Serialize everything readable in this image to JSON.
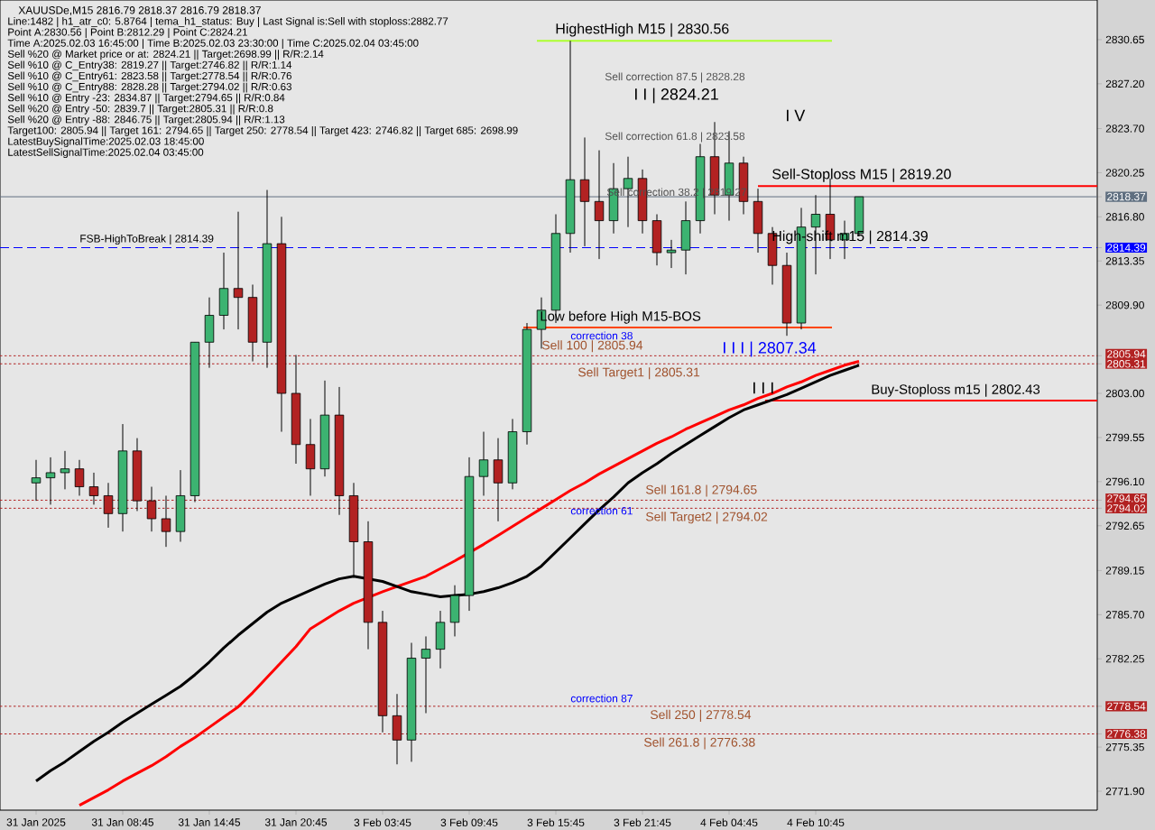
{
  "chart_data": {
    "type": "candlestick",
    "title": "XAUUSDe,M15  2816.79 2818.37 2816.79 2818.37",
    "categories": [
      "31 Jan 2025",
      null,
      null,
      null,
      null,
      null,
      "31 Jan 08:45",
      null,
      null,
      null,
      null,
      null,
      "31 Jan 14:45",
      null,
      null,
      null,
      null,
      null,
      "31 Jan 20:45",
      null,
      null,
      null,
      null,
      null,
      "3 Feb 03:45",
      null,
      null,
      null,
      null,
      null,
      "3 Feb 09:45",
      null,
      null,
      null,
      null,
      null,
      "3 Feb 15:45",
      null,
      null,
      null,
      null,
      null,
      "3 Feb 21:45",
      null,
      null,
      null,
      null,
      null,
      "4 Feb 04:45",
      null,
      null,
      null,
      null,
      null,
      "4 Feb 10:45",
      null,
      null,
      null
    ],
    "ohlc": [
      [
        2796.0,
        2797.8,
        2794.6,
        2796.4
      ],
      [
        2796.4,
        2798.0,
        2794.3,
        2796.8
      ],
      [
        2796.8,
        2798.5,
        2795.5,
        2797.1
      ],
      [
        2797.1,
        2797.8,
        2795.0,
        2795.7
      ],
      [
        2795.7,
        2796.8,
        2794.3,
        2795.0
      ],
      [
        2795.0,
        2796.0,
        2792.5,
        2793.6
      ],
      [
        2793.6,
        2800.6,
        2792.2,
        2798.5
      ],
      [
        2798.5,
        2799.5,
        2793.8,
        2794.6
      ],
      [
        2794.6,
        2795.7,
        2792.2,
        2793.2
      ],
      [
        2793.2,
        2795.0,
        2791.0,
        2792.2
      ],
      [
        2792.2,
        2797.0,
        2791.4,
        2795.0
      ],
      [
        2795.0,
        2807.0,
        2794.5,
        2807.0
      ],
      [
        2807.0,
        2810.5,
        2805.0,
        2809.1
      ],
      [
        2809.1,
        2814.0,
        2808.0,
        2811.2
      ],
      [
        2811.2,
        2817.2,
        2808.0,
        2810.5
      ],
      [
        2810.5,
        2811.5,
        2805.5,
        2807.0
      ],
      [
        2807.0,
        2818.9,
        2805.0,
        2814.7
      ],
      [
        2814.7,
        2816.8,
        2800.0,
        2803.0
      ],
      [
        2803.0,
        2806.0,
        2797.5,
        2799.0
      ],
      [
        2799.0,
        2801.0,
        2795.0,
        2797.1
      ],
      [
        2797.1,
        2804.0,
        2796.5,
        2801.3
      ],
      [
        2801.3,
        2803.5,
        2793.5,
        2795.0
      ],
      [
        2795.0,
        2796.0,
        2788.6,
        2791.4
      ],
      [
        2791.4,
        2793.0,
        2783.0,
        2785.1
      ],
      [
        2785.1,
        2786.0,
        2776.5,
        2777.8
      ],
      [
        2777.8,
        2779.5,
        2774.0,
        2775.9
      ],
      [
        2775.9,
        2783.5,
        2774.2,
        2782.3
      ],
      [
        2782.3,
        2784.0,
        2778.0,
        2783.0
      ],
      [
        2783.0,
        2786.0,
        2781.5,
        2785.1
      ],
      [
        2785.1,
        2788.0,
        2784.0,
        2787.2
      ],
      [
        2787.2,
        2798.0,
        2786.0,
        2796.5
      ],
      [
        2796.5,
        2800.0,
        2795.0,
        2797.8
      ],
      [
        2797.8,
        2799.5,
        2793.0,
        2796.0
      ],
      [
        2796.0,
        2801.0,
        2795.5,
        2800.0
      ],
      [
        2800.0,
        2808.5,
        2799.0,
        2808.0
      ],
      [
        2808.0,
        2810.5,
        2806.5,
        2809.5
      ],
      [
        2809.5,
        2817.0,
        2808.5,
        2815.5
      ],
      [
        2815.5,
        2830.56,
        2814.0,
        2819.7
      ],
      [
        2819.7,
        2823.0,
        2814.5,
        2818.0
      ],
      [
        2818.0,
        2822.0,
        2813.5,
        2816.5
      ],
      [
        2816.5,
        2821.0,
        2815.5,
        2819.0
      ],
      [
        2819.0,
        2821.5,
        2816.0,
        2819.8
      ],
      [
        2819.8,
        2820.5,
        2815.5,
        2816.5
      ],
      [
        2816.5,
        2817.0,
        2813.0,
        2814.0
      ],
      [
        2814.0,
        2815.0,
        2812.8,
        2814.2
      ],
      [
        2814.2,
        2818.0,
        2812.3,
        2816.5
      ],
      [
        2816.5,
        2822.5,
        2815.5,
        2821.5
      ],
      [
        2821.5,
        2824.21,
        2817.0,
        2818.5
      ],
      [
        2818.5,
        2823.5,
        2816.5,
        2821.0
      ],
      [
        2821.0,
        2821.5,
        2817.0,
        2818.0
      ],
      [
        2818.0,
        2819.0,
        2814.0,
        2815.5
      ],
      [
        2815.5,
        2816.0,
        2811.5,
        2813.0
      ],
      [
        2813.0,
        2814.0,
        2807.5,
        2808.5
      ],
      [
        2808.5,
        2817.5,
        2808.0,
        2816.0
      ],
      [
        2816.0,
        2818.5,
        2812.3,
        2817.0
      ],
      [
        2817.0,
        2819.8,
        2813.5,
        2815.0
      ],
      [
        2815.0,
        2816.5,
        2813.5,
        2815.5
      ],
      [
        2815.5,
        2818.37,
        2815.3,
        2818.37
      ]
    ],
    "series": [
      {
        "type": "line",
        "color": "#ff0000",
        "values": [
          null,
          null,
          null,
          2770.8,
          2771.4,
          2772.0,
          2772.7,
          2773.3,
          2773.9,
          2774.6,
          2775.4,
          2776.1,
          2776.9,
          2777.7,
          2778.5,
          2779.6,
          2780.8,
          2782.0,
          2783.2,
          2784.6,
          2785.3,
          2786.0,
          2786.6,
          null,
          2787.5,
          2787.9,
          2788.3,
          2788.7,
          2789.3,
          2789.9,
          null,
          2791.2,
          2791.9,
          2792.6,
          2793.3,
          2794.0,
          2794.7,
          2795.4,
          2796.0,
          2796.7,
          2797.3,
          2797.9,
          2798.5,
          2799.1,
          2799.6,
          2800.2,
          2800.7,
          2801.2,
          2801.7,
          2802.1,
          2802.6,
          2803.0,
          2803.5,
          2803.9,
          2804.4,
          2804.8,
          2805.2,
          2805.5
        ]
      },
      {
        "type": "line",
        "color": "#000000",
        "values": [
          2772.7,
          2773.5,
          2774.2,
          2775.0,
          2775.8,
          2776.5,
          2777.3,
          2778.0,
          2778.7,
          2779.4,
          2780.1,
          2781.0,
          2782.0,
          2783.1,
          2784.1,
          2785.0,
          2785.9,
          2786.6,
          2787.1,
          2787.6,
          2788.1,
          2788.5,
          2788.7,
          null,
          2788.3,
          2787.9,
          2787.5,
          2787.3,
          2787.1,
          2787.2,
          2787.3,
          2787.5,
          2787.8,
          2788.2,
          2788.7,
          2789.5,
          2790.6,
          2791.7,
          2792.8,
          2793.9,
          2794.9,
          2796.0,
          2796.8,
          2797.5,
          2798.3,
          2799.0,
          2799.7,
          2800.4,
          2801.1,
          2801.7,
          2802.1,
          2802.5,
          2802.9,
          2803.4,
          2803.9,
          2804.4,
          2804.8,
          2805.2
        ]
      }
    ],
    "ylim": [
      2770.42,
      2833.75
    ],
    "yticks": [
      {
        "value": 2771.9,
        "label": "2771.90"
      },
      2775.35,
      2782.25,
      {
        "value": 2785.7,
        "label": "2785.70"
      },
      2789.15,
      2792.65,
      {
        "value": 2796.1,
        "label": "2796.10"
      },
      2799.55,
      {
        "value": 2803.0,
        "label": "2803.00"
      },
      {
        "value": 2809.9,
        "label": "2809.90"
      },
      2813.35,
      {
        "value": 2816.8,
        "label": "2816.80"
      },
      2820.25,
      {
        "value": 2823.7,
        "label": "2823.70"
      },
      {
        "value": 2827.2,
        "label": "2827.20"
      },
      2830.65,
      2818.37,
      2814.39,
      2805.94,
      2805.31,
      2794.65,
      2794.02,
      2778.54,
      2776.38
    ],
    "ref_lines": [
      {
        "axis": "y",
        "value": 2830.56,
        "label": "HighestHigh M15 | 2830.56",
        "color": "#adff2f",
        "line_style": "solid"
      },
      {
        "axis": "y",
        "value": 2819.2,
        "label": "Sell-Stoploss M15 | 2819.20",
        "color": "#ff0000",
        "line_style": "solid"
      },
      {
        "axis": "y",
        "value": 2818.37,
        "color": "#5f6f80",
        "line_style": "solid"
      },
      {
        "axis": "y",
        "value": 2814.39,
        "label": "FSB-HighToBreak | 2814.39",
        "color": "#0000ff",
        "line_style": "dashed"
      },
      {
        "axis": "y",
        "value": 2808.15,
        "label": "Low before High M15-BOS",
        "color": "#ff4500",
        "line_style": "solid"
      },
      {
        "axis": "y",
        "value": 2805.94,
        "label": "Sell 100 | 2805.94",
        "color": "#b22222",
        "line_style": "dotted"
      },
      {
        "axis": "y",
        "value": 2805.31,
        "label": "Sell Target1 | 2805.31",
        "color": "#b22222",
        "line_style": "dotted"
      },
      {
        "axis": "y",
        "value": 2802.43,
        "label": "Buy-Stoploss m15 | 2802.43",
        "color": "#ff0000",
        "line_style": "solid"
      },
      {
        "axis": "y",
        "value": 2794.65,
        "label": "Sell 161.8 | 2794.65",
        "color": "#b22222",
        "line_style": "dotted"
      },
      {
        "axis": "y",
        "value": 2794.02,
        "label": "Sell Target2 | 2794.02",
        "color": "#b22222",
        "line_style": "dotted"
      },
      {
        "axis": "y",
        "value": 2778.54,
        "label": "Sell 250 | 2778.54",
        "color": "#b22222",
        "line_style": "dotted"
      },
      {
        "axis": "y",
        "value": 2776.38,
        "label": "Sell 261.8 | 2776.38",
        "color": "#b22222",
        "line_style": "dotted"
      }
    ],
    "annotations": [
      "Line:1482 | h1_atr_c0: 5.8764 | tema_h1_status: Buy | Last Signal is:Sell with stoploss:2882.77",
      "Point A:2830.56 | Point B:2812.29 | Point C:2824.21",
      "Time A:2025.02.03 16:45:00 | Time B:2025.02.03 23:30:00 | Time C:2025.02.04 03:45:00",
      "Sell %20 @ Market price or at: 2824.21 || Target:2698.99 || R/R:2.14",
      "Sell %10 @ C_Entry38: 2819.27 || Target:2746.82 || R/R:1.14",
      "Sell %10 @ C_Entry61: 2823.58 || Target:2778.54 || R/R:0.76",
      "Sell %10 @ C_Entry88: 2828.28 || Target:2794.02 || R/R:0.63",
      "Sell %10 @ Entry -23: 2834.87 || Target:2794.65 || R/R:0.84",
      "Sell %20 @ Entry -50: 2839.7 || Target:2805.31 || R/R:0.8",
      "Sell %20 @ Entry -88: 2846.75 || Target:2805.94 || R/R:1.13",
      "Target100: 2805.94 || Target 161: 2794.65 || Target 250: 2778.54 || Target 423: 2746.82 || Target 685: 2698.99",
      "LatestBuySignalTime:2025.02.03 18:45:00",
      "LatestSellSignalTime:2025.02.04 03:45:00",
      "High-shift m15 | 2814.39",
      "Sell correction 87.5 | 2828.28",
      "Sell correction 61.8 | 2823.58",
      "Sell correction 38.2 | 2819.27",
      "I I | 2824.21",
      "I V",
      "I I I | 2807.34",
      "I I I",
      "correction 38",
      "correction 61",
      "correction 87"
    ]
  }
}
